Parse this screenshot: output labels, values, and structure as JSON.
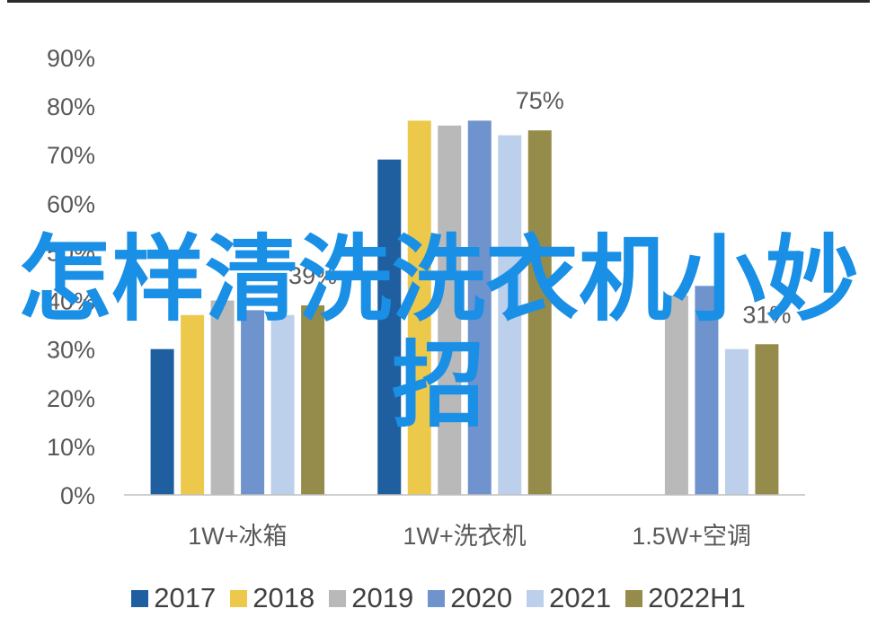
{
  "chart_data": {
    "type": "bar",
    "categories": [
      "1W+冰箱",
      "1W+洗衣机",
      "1.5W+空调"
    ],
    "yticks": [
      "0%",
      "10%",
      "20%",
      "30%",
      "40%",
      "50%",
      "60%",
      "70%",
      "80%",
      "90%"
    ],
    "ylim": [
      0,
      90
    ],
    "series": [
      {
        "name": "2017",
        "color": "#1f5fa0",
        "values": [
          30,
          69,
          null
        ]
      },
      {
        "name": "2018",
        "color": "#ecc94b",
        "values": [
          37,
          77,
          null
        ]
      },
      {
        "name": "2019",
        "color": "#b9b9b9",
        "values": [
          40,
          76,
          41
        ]
      },
      {
        "name": "2020",
        "color": "#6f93cc",
        "values": [
          38,
          77,
          43
        ]
      },
      {
        "name": "2021",
        "color": "#bcd0ec",
        "values": [
          37,
          74,
          30
        ]
      },
      {
        "name": "2022H1",
        "color": "#958c4c",
        "values": [
          39,
          75,
          31
        ]
      }
    ],
    "data_labels": [
      {
        "text": "39%",
        "category": 0,
        "series": 5
      },
      {
        "text": "75%",
        "category": 1,
        "series": 5
      },
      {
        "text": "31%",
        "category": 2,
        "series": 5
      }
    ],
    "legend_position": "bottom",
    "grid": false
  },
  "overlay_title": "怎样清洗洗衣机小妙招"
}
